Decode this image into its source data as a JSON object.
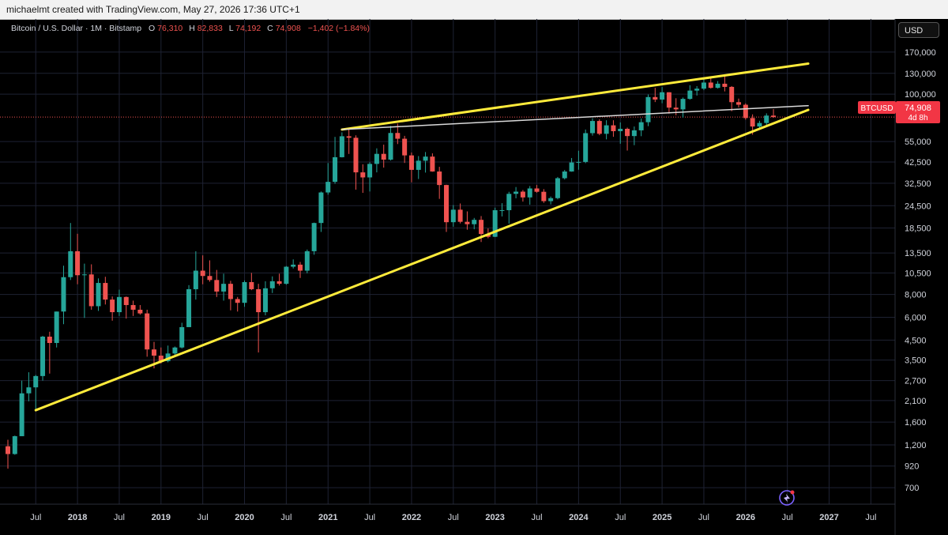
{
  "credit": "michaelmt created with TradingView.com, May 27, 2026 17:36 UTC+1",
  "legend": {
    "symbol": "Bitcoin / U.S. Dollar · 1M · Bitstamp",
    "o_label": "O",
    "o_value": "76,310",
    "h_label": "H",
    "h_value": "82,833",
    "l_label": "L",
    "l_value": "74,192",
    "c_label": "C",
    "c_value": "74,908",
    "change": "−1,402 (−1.84%)"
  },
  "currency": "USD",
  "price_badge": {
    "symbol": "BTCUSD",
    "price": "74,908",
    "countdown": "4d 8h"
  },
  "colors": {
    "up": "#26a69a",
    "down": "#ef5350",
    "trendline": "#ffeb3b",
    "midline": "#d9d9d9",
    "badge": "#f23645",
    "grid": "#1e2233"
  },
  "chart_data": {
    "type": "candlestick",
    "scale": "log",
    "ylim": [
      580,
      220000
    ],
    "xlim": [
      "2017-03",
      "2027-09"
    ],
    "y_ticks": [
      "170,000",
      "130,000",
      "100,000",
      "55,000",
      "42,500",
      "32,500",
      "24,500",
      "18,500",
      "13,500",
      "10,500",
      "8,000",
      "6,000",
      "4,500",
      "3,500",
      "2,700",
      "2,100",
      "1,600",
      "1,200",
      "920",
      "700"
    ],
    "x_ticks": [
      {
        "label": "Jul",
        "t": "2017-07"
      },
      {
        "label": "2018",
        "t": "2018-01"
      },
      {
        "label": "Jul",
        "t": "2018-07"
      },
      {
        "label": "2019",
        "t": "2019-01"
      },
      {
        "label": "Jul",
        "t": "2019-07"
      },
      {
        "label": "2020",
        "t": "2020-01"
      },
      {
        "label": "Jul",
        "t": "2020-07"
      },
      {
        "label": "2021",
        "t": "2021-01"
      },
      {
        "label": "Jul",
        "t": "2021-07"
      },
      {
        "label": "2022",
        "t": "2022-01"
      },
      {
        "label": "Jul",
        "t": "2022-07"
      },
      {
        "label": "2023",
        "t": "2023-01"
      },
      {
        "label": "Jul",
        "t": "2023-07"
      },
      {
        "label": "2024",
        "t": "2024-01"
      },
      {
        "label": "Jul",
        "t": "2024-07"
      },
      {
        "label": "2025",
        "t": "2025-01"
      },
      {
        "label": "Jul",
        "t": "2025-07"
      },
      {
        "label": "2026",
        "t": "2026-01"
      },
      {
        "label": "Jul",
        "t": "2026-07"
      },
      {
        "label": "2027",
        "t": "2027-01"
      },
      {
        "label": "Jul",
        "t": "2027-07"
      }
    ],
    "grid": true,
    "last_price": 74908,
    "candles": [
      {
        "t": "2017-03",
        "o": 1180,
        "h": 1280,
        "l": 890,
        "c": 1070
      },
      {
        "t": "2017-04",
        "o": 1070,
        "h": 1350,
        "l": 1060,
        "c": 1340
      },
      {
        "t": "2017-05",
        "o": 1340,
        "h": 2700,
        "l": 1340,
        "c": 2300
      },
      {
        "t": "2017-06",
        "o": 2300,
        "h": 3000,
        "l": 2080,
        "c": 2480
      },
      {
        "t": "2017-07",
        "o": 2480,
        "h": 2900,
        "l": 1850,
        "c": 2860
      },
      {
        "t": "2017-08",
        "o": 2860,
        "h": 4750,
        "l": 2700,
        "c": 4700
      },
      {
        "t": "2017-09",
        "o": 4700,
        "h": 5000,
        "l": 2950,
        "c": 4340
      },
      {
        "t": "2017-10",
        "o": 4340,
        "h": 6450,
        "l": 4100,
        "c": 6450
      },
      {
        "t": "2017-11",
        "o": 6450,
        "h": 11500,
        "l": 5500,
        "c": 9950
      },
      {
        "t": "2017-12",
        "o": 9950,
        "h": 19700,
        "l": 9600,
        "c": 13800
      },
      {
        "t": "2018-01",
        "o": 13800,
        "h": 17200,
        "l": 9100,
        "c": 10200
      },
      {
        "t": "2018-02",
        "o": 10200,
        "h": 11800,
        "l": 5950,
        "c": 10300
      },
      {
        "t": "2018-03",
        "o": 10300,
        "h": 11700,
        "l": 6600,
        "c": 6900
      },
      {
        "t": "2018-04",
        "o": 6900,
        "h": 9800,
        "l": 6500,
        "c": 9250
      },
      {
        "t": "2018-05",
        "o": 9250,
        "h": 10000,
        "l": 7050,
        "c": 7500
      },
      {
        "t": "2018-06",
        "o": 7500,
        "h": 7800,
        "l": 5750,
        "c": 6400
      },
      {
        "t": "2018-07",
        "o": 6400,
        "h": 8500,
        "l": 6100,
        "c": 7750
      },
      {
        "t": "2018-08",
        "o": 7750,
        "h": 7800,
        "l": 5900,
        "c": 7000
      },
      {
        "t": "2018-09",
        "o": 7000,
        "h": 7400,
        "l": 6100,
        "c": 6600
      },
      {
        "t": "2018-10",
        "o": 6600,
        "h": 7000,
        "l": 6200,
        "c": 6300
      },
      {
        "t": "2018-11",
        "o": 6300,
        "h": 6600,
        "l": 3650,
        "c": 4000
      },
      {
        "t": "2018-12",
        "o": 4000,
        "h": 4400,
        "l": 3150,
        "c": 3700
      },
      {
        "t": "2019-01",
        "o": 3700,
        "h": 4100,
        "l": 3350,
        "c": 3450
      },
      {
        "t": "2019-02",
        "o": 3450,
        "h": 4200,
        "l": 3400,
        "c": 3800
      },
      {
        "t": "2019-03",
        "o": 3800,
        "h": 4150,
        "l": 3700,
        "c": 4100
      },
      {
        "t": "2019-04",
        "o": 4100,
        "h": 5600,
        "l": 4050,
        "c": 5300
      },
      {
        "t": "2019-05",
        "o": 5300,
        "h": 9000,
        "l": 5300,
        "c": 8550
      },
      {
        "t": "2019-06",
        "o": 8550,
        "h": 13800,
        "l": 7500,
        "c": 10800
      },
      {
        "t": "2019-07",
        "o": 10800,
        "h": 13100,
        "l": 9100,
        "c": 10100
      },
      {
        "t": "2019-08",
        "o": 10100,
        "h": 12300,
        "l": 9400,
        "c": 9600
      },
      {
        "t": "2019-09",
        "o": 9600,
        "h": 10900,
        "l": 7750,
        "c": 8300
      },
      {
        "t": "2019-10",
        "o": 8300,
        "h": 10400,
        "l": 7400,
        "c": 9150
      },
      {
        "t": "2019-11",
        "o": 9150,
        "h": 9500,
        "l": 6550,
        "c": 7550
      },
      {
        "t": "2019-12",
        "o": 7550,
        "h": 7750,
        "l": 6450,
        "c": 7200
      },
      {
        "t": "2020-01",
        "o": 7200,
        "h": 9550,
        "l": 6850,
        "c": 9350
      },
      {
        "t": "2020-02",
        "o": 9350,
        "h": 10500,
        "l": 8450,
        "c": 8550
      },
      {
        "t": "2020-03",
        "o": 8550,
        "h": 9150,
        "l": 3850,
        "c": 6400
      },
      {
        "t": "2020-04",
        "o": 6400,
        "h": 9450,
        "l": 6150,
        "c": 8650
      },
      {
        "t": "2020-05",
        "o": 8650,
        "h": 10050,
        "l": 8150,
        "c": 9450
      },
      {
        "t": "2020-06",
        "o": 9450,
        "h": 10400,
        "l": 8950,
        "c": 9150
      },
      {
        "t": "2020-07",
        "o": 9150,
        "h": 11450,
        "l": 9050,
        "c": 11350
      },
      {
        "t": "2020-08",
        "o": 11350,
        "h": 12450,
        "l": 11100,
        "c": 11650
      },
      {
        "t": "2020-09",
        "o": 11650,
        "h": 12050,
        "l": 9850,
        "c": 10800
      },
      {
        "t": "2020-10",
        "o": 10800,
        "h": 14100,
        "l": 10450,
        "c": 13800
      },
      {
        "t": "2020-11",
        "o": 13800,
        "h": 19800,
        "l": 13200,
        "c": 19700
      },
      {
        "t": "2020-12",
        "o": 19700,
        "h": 29300,
        "l": 17600,
        "c": 28950
      },
      {
        "t": "2021-01",
        "o": 28950,
        "h": 41950,
        "l": 28150,
        "c": 33100
      },
      {
        "t": "2021-02",
        "o": 33100,
        "h": 58350,
        "l": 32300,
        "c": 45150
      },
      {
        "t": "2021-03",
        "o": 45150,
        "h": 61800,
        "l": 45000,
        "c": 58800
      },
      {
        "t": "2021-04",
        "o": 58800,
        "h": 64900,
        "l": 47050,
        "c": 57700
      },
      {
        "t": "2021-05",
        "o": 57700,
        "h": 59500,
        "l": 30000,
        "c": 37300
      },
      {
        "t": "2021-06",
        "o": 37300,
        "h": 41300,
        "l": 28800,
        "c": 35000
      },
      {
        "t": "2021-07",
        "o": 35000,
        "h": 42400,
        "l": 29300,
        "c": 41500
      },
      {
        "t": "2021-08",
        "o": 41500,
        "h": 50500,
        "l": 37300,
        "c": 47100
      },
      {
        "t": "2021-09",
        "o": 47100,
        "h": 52900,
        "l": 39600,
        "c": 43800
      },
      {
        "t": "2021-10",
        "o": 43800,
        "h": 67000,
        "l": 43300,
        "c": 61300
      },
      {
        "t": "2021-11",
        "o": 61300,
        "h": 69000,
        "l": 53300,
        "c": 57000
      },
      {
        "t": "2021-12",
        "o": 57000,
        "h": 59100,
        "l": 42000,
        "c": 46200
      },
      {
        "t": "2022-01",
        "o": 46200,
        "h": 47900,
        "l": 32900,
        "c": 38500
      },
      {
        "t": "2022-02",
        "o": 38500,
        "h": 45800,
        "l": 34300,
        "c": 43200
      },
      {
        "t": "2022-03",
        "o": 43200,
        "h": 48200,
        "l": 37200,
        "c": 45500
      },
      {
        "t": "2022-04",
        "o": 45500,
        "h": 47400,
        "l": 37600,
        "c": 37700
      },
      {
        "t": "2022-05",
        "o": 37700,
        "h": 40000,
        "l": 26700,
        "c": 31800
      },
      {
        "t": "2022-06",
        "o": 31800,
        "h": 31900,
        "l": 17600,
        "c": 19900
      },
      {
        "t": "2022-07",
        "o": 19900,
        "h": 24700,
        "l": 18800,
        "c": 23300
      },
      {
        "t": "2022-08",
        "o": 23300,
        "h": 25200,
        "l": 19600,
        "c": 20000
      },
      {
        "t": "2022-09",
        "o": 20000,
        "h": 22800,
        "l": 18100,
        "c": 19400
      },
      {
        "t": "2022-10",
        "o": 19400,
        "h": 21000,
        "l": 18200,
        "c": 20500
      },
      {
        "t": "2022-11",
        "o": 20500,
        "h": 21500,
        "l": 15500,
        "c": 17150
      },
      {
        "t": "2022-12",
        "o": 17150,
        "h": 18400,
        "l": 16250,
        "c": 16550
      },
      {
        "t": "2023-01",
        "o": 16550,
        "h": 23900,
        "l": 16500,
        "c": 23150
      },
      {
        "t": "2023-02",
        "o": 23150,
        "h": 25300,
        "l": 21400,
        "c": 23150
      },
      {
        "t": "2023-03",
        "o": 23150,
        "h": 29200,
        "l": 19550,
        "c": 28450
      },
      {
        "t": "2023-04",
        "o": 28450,
        "h": 31000,
        "l": 26900,
        "c": 29250
      },
      {
        "t": "2023-05",
        "o": 29250,
        "h": 29850,
        "l": 25800,
        "c": 27200
      },
      {
        "t": "2023-06",
        "o": 27200,
        "h": 31400,
        "l": 24800,
        "c": 30450
      },
      {
        "t": "2023-07",
        "o": 30450,
        "h": 31800,
        "l": 28850,
        "c": 29200
      },
      {
        "t": "2023-08",
        "o": 29200,
        "h": 30200,
        "l": 25400,
        "c": 25950
      },
      {
        "t": "2023-09",
        "o": 25950,
        "h": 27500,
        "l": 24900,
        "c": 26950
      },
      {
        "t": "2023-10",
        "o": 26950,
        "h": 35200,
        "l": 26550,
        "c": 34650
      },
      {
        "t": "2023-11",
        "o": 34650,
        "h": 38450,
        "l": 34100,
        "c": 37700
      },
      {
        "t": "2023-12",
        "o": 37700,
        "h": 44700,
        "l": 37600,
        "c": 42250
      },
      {
        "t": "2024-01",
        "o": 42250,
        "h": 49000,
        "l": 38550,
        "c": 42550
      },
      {
        "t": "2024-02",
        "o": 42550,
        "h": 64000,
        "l": 41900,
        "c": 61150
      },
      {
        "t": "2024-03",
        "o": 61150,
        "h": 73800,
        "l": 59300,
        "c": 71300
      },
      {
        "t": "2024-04",
        "o": 71300,
        "h": 72800,
        "l": 59600,
        "c": 60650
      },
      {
        "t": "2024-05",
        "o": 60650,
        "h": 71950,
        "l": 56550,
        "c": 67500
      },
      {
        "t": "2024-06",
        "o": 67500,
        "h": 71950,
        "l": 58400,
        "c": 62700
      },
      {
        "t": "2024-07",
        "o": 62700,
        "h": 70000,
        "l": 53500,
        "c": 64600
      },
      {
        "t": "2024-08",
        "o": 64600,
        "h": 65600,
        "l": 49100,
        "c": 58950
      },
      {
        "t": "2024-09",
        "o": 58950,
        "h": 66500,
        "l": 52550,
        "c": 63350
      },
      {
        "t": "2024-10",
        "o": 63350,
        "h": 73600,
        "l": 58850,
        "c": 70200
      },
      {
        "t": "2024-11",
        "o": 70200,
        "h": 99600,
        "l": 66800,
        "c": 96400
      },
      {
        "t": "2024-12",
        "o": 96400,
        "h": 108300,
        "l": 90500,
        "c": 93400
      },
      {
        "t": "2025-01",
        "o": 93400,
        "h": 109400,
        "l": 89200,
        "c": 102400
      },
      {
        "t": "2025-02",
        "o": 102400,
        "h": 102500,
        "l": 78200,
        "c": 84350
      },
      {
        "t": "2025-03",
        "o": 84350,
        "h": 95000,
        "l": 76600,
        "c": 82550
      },
      {
        "t": "2025-04",
        "o": 82550,
        "h": 95800,
        "l": 74400,
        "c": 94200
      },
      {
        "t": "2025-05",
        "o": 94200,
        "h": 111900,
        "l": 93300,
        "c": 104600
      },
      {
        "t": "2025-06",
        "o": 104600,
        "h": 110600,
        "l": 98200,
        "c": 107150
      },
      {
        "t": "2025-07",
        "o": 107150,
        "h": 123100,
        "l": 105150,
        "c": 115750
      },
      {
        "t": "2025-08",
        "o": 115750,
        "h": 124450,
        "l": 107300,
        "c": 108250
      },
      {
        "t": "2025-09",
        "o": 108250,
        "h": 117900,
        "l": 107300,
        "c": 114050
      },
      {
        "t": "2025-10",
        "o": 114050,
        "h": 126200,
        "l": 103500,
        "c": 109600
      },
      {
        "t": "2025-11",
        "o": 109600,
        "h": 110700,
        "l": 80600,
        "c": 90400
      },
      {
        "t": "2025-12",
        "o": 90400,
        "h": 94600,
        "l": 84500,
        "c": 87500
      },
      {
        "t": "2026-01",
        "o": 87500,
        "h": 89000,
        "l": 72500,
        "c": 74000
      },
      {
        "t": "2026-02",
        "o": 74000,
        "h": 77500,
        "l": 60000,
        "c": 66500
      },
      {
        "t": "2026-03",
        "o": 66500,
        "h": 71500,
        "l": 64000,
        "c": 69500
      },
      {
        "t": "2026-04",
        "o": 69500,
        "h": 78500,
        "l": 67500,
        "c": 76310
      },
      {
        "t": "2026-05",
        "o": 76310,
        "h": 82833,
        "l": 74192,
        "c": 74908
      }
    ],
    "trendlines": [
      {
        "name": "upper-channel",
        "color": "#ffeb3b",
        "points": [
          {
            "t": "2021-03",
            "p": 64000
          },
          {
            "t": "2026-10",
            "p": 147000
          }
        ]
      },
      {
        "name": "lower-support",
        "color": "#ffeb3b",
        "points": [
          {
            "t": "2017-07",
            "p": 1860
          },
          {
            "t": "2026-10",
            "p": 82000
          }
        ]
      },
      {
        "name": "horizontal-resistance",
        "color": "#d9d9d9",
        "points": [
          {
            "t": "2021-03",
            "p": 64000
          },
          {
            "t": "2026-10",
            "p": 86500
          }
        ]
      }
    ]
  }
}
